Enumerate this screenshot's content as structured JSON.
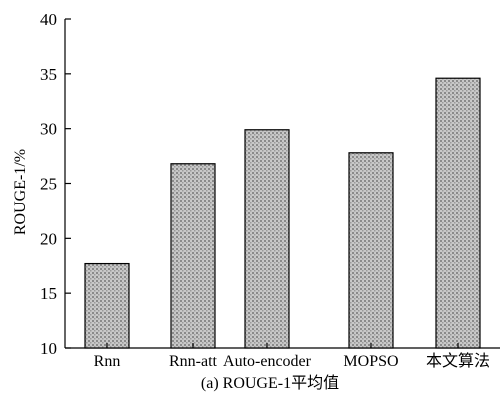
{
  "chart_data": {
    "type": "bar",
    "categories": [
      "Rnn",
      "Rnn-att",
      "Auto-encoder",
      "MOPSO",
      "本文算法"
    ],
    "values": [
      17.7,
      26.8,
      29.9,
      27.8,
      34.6
    ],
    "ylabel": "ROUGE-1/%",
    "xlabel": "",
    "ylim": [
      10,
      40
    ],
    "yticks": [
      10,
      15,
      20,
      25,
      30,
      35,
      40
    ],
    "grid": false,
    "caption": "(a) ROUGE-1平均值",
    "colors": {
      "bar_fill": "#c4c4c4",
      "bar_pattern": "#7a7a7a",
      "axis": "#000000"
    }
  }
}
